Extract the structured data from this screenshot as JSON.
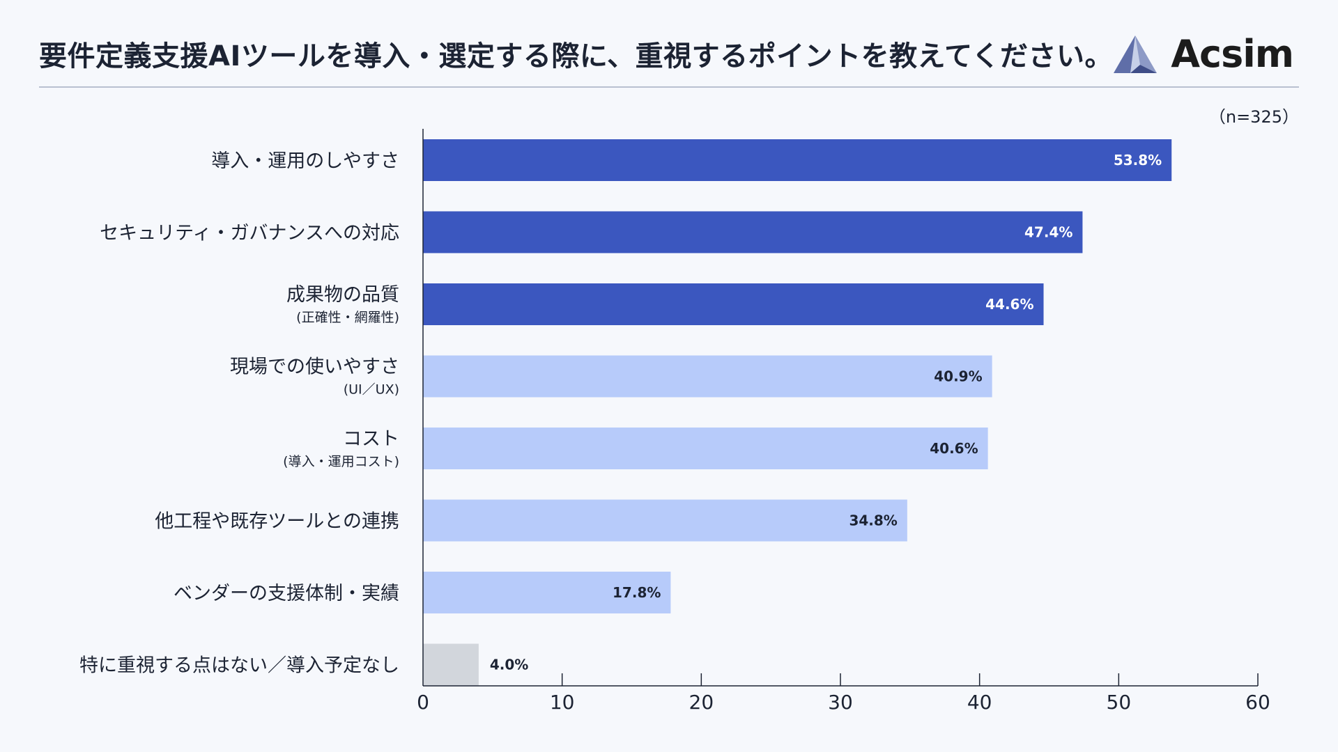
{
  "header": {
    "title": "要件定義支援AIツールを導入・選定する際に、重視するポイントを教えてください。",
    "brand": "Acsim",
    "brand_icon": "acsim-logo-icon"
  },
  "sample_size": "（n=325）",
  "colors": {
    "dark": "#3b57bf",
    "light": "#b7cbfa",
    "gray": "#d2d6dc",
    "axis": "#1c2333"
  },
  "chart_data": {
    "type": "bar",
    "orientation": "horizontal",
    "categories": [
      {
        "label": "導入・運用のしやすさ",
        "sub": "",
        "value": 53.8,
        "value_label": "53.8%",
        "tone": "dark"
      },
      {
        "label": "セキュリティ・ガバナンスへの対応",
        "sub": "",
        "value": 47.4,
        "value_label": "47.4%",
        "tone": "dark"
      },
      {
        "label": "成果物の品質",
        "sub": "(正確性・網羅性)",
        "value": 44.6,
        "value_label": "44.6%",
        "tone": "dark"
      },
      {
        "label": "現場での使いやすさ",
        "sub": "(UI／UX)",
        "value": 40.9,
        "value_label": "40.9%",
        "tone": "light"
      },
      {
        "label": "コスト",
        "sub": "(導入・運用コスト)",
        "value": 40.6,
        "value_label": "40.6%",
        "tone": "light"
      },
      {
        "label": "他工程や既存ツールとの連携",
        "sub": "",
        "value": 34.8,
        "value_label": "34.8%",
        "tone": "light"
      },
      {
        "label": "ベンダーの支援体制・実績",
        "sub": "",
        "value": 17.8,
        "value_label": "17.8%",
        "tone": "light"
      },
      {
        "label": "特に重視する点はない／導入予定なし",
        "sub": "",
        "value": 4.0,
        "value_label": "4.0%",
        "tone": "gray"
      }
    ],
    "xlim": [
      0,
      60
    ],
    "xticks": [
      "0",
      "10",
      "20",
      "30",
      "40",
      "50",
      "60"
    ],
    "grid": false
  }
}
